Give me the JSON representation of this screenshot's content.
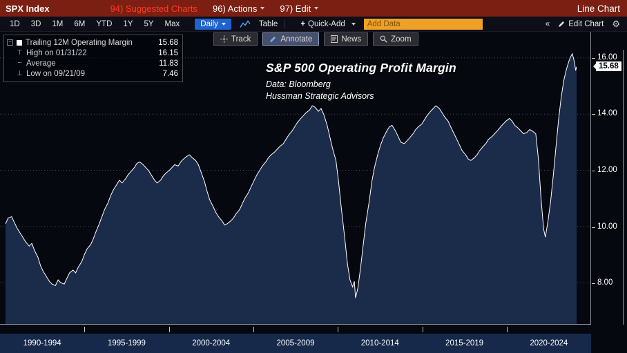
{
  "topbar": {
    "security": "SPX Index",
    "suggested": "94) Suggested Charts",
    "actions": "96) Actions",
    "edit": "97) Edit",
    "title": "Line Chart"
  },
  "toolbar": {
    "ranges": [
      "1D",
      "3D",
      "1M",
      "6M",
      "YTD",
      "1Y",
      "5Y",
      "Max"
    ],
    "period": "Daily",
    "table": "Table",
    "plus": "+",
    "quick_add": "Quick-Add",
    "add_data_placeholder": "Add Data",
    "collapse": "«",
    "edit_chart": "Edit Chart",
    "gear": "⚙"
  },
  "chart_tools": {
    "track": "Track",
    "annotate": "Annotate",
    "news": "News",
    "zoom": "Zoom"
  },
  "legend": {
    "collapse_glyph": "−",
    "rows": [
      {
        "label": "Trailing 12M Operating Margin",
        "value": "15.68",
        "glyph": ""
      },
      {
        "label": "High on 01/31/22",
        "value": "16.15",
        "glyph": "⊤"
      },
      {
        "label": "Average",
        "value": "11.83",
        "glyph": "┄"
      },
      {
        "label": "Low on 09/21/09",
        "value": "7.46",
        "glyph": "⊥"
      }
    ]
  },
  "annotation": {
    "title": "S&P 500 Operating Profit Margin",
    "line1": "Data: Bloomberg",
    "line2": "Hussman Strategic Advisors"
  },
  "axis": {
    "last_value": "15.68",
    "yticks": [
      "16.00",
      "14.00",
      "12.00",
      "10.00",
      "8.00"
    ],
    "xlabels": [
      "1990-1994",
      "1995-1999",
      "2000-2004",
      "2005-2009",
      "2010-2014",
      "2015-2019",
      "2020-2024"
    ]
  },
  "colors": {
    "topbar_red": "#7c1f13",
    "accent_blue": "#1e63cf",
    "amber": "#efa027",
    "area_fill": "#1b2c4b",
    "line": "#ffffff",
    "grid": "#414b59",
    "bottom_bar": "#16294a"
  },
  "chart_data": {
    "type": "area",
    "title": "S&P 500 Operating Profit Margin",
    "subtitle": [
      "Data: Bloomberg",
      "Hussman Strategic Advisors"
    ],
    "x_unit": "year",
    "yticks": [
      8,
      10,
      12,
      14,
      16
    ],
    "ylim_display": [
      6.53,
      16.93
    ],
    "x_bins": [
      "1990-1994",
      "1995-1999",
      "2000-2004",
      "2005-2009",
      "2010-2014",
      "2015-2019",
      "2020-2024"
    ],
    "grid": "dotted-horizontal",
    "legend_position": "top-left",
    "stats": {
      "last": 15.68,
      "high": 16.15,
      "high_date": "01/31/22",
      "average": 11.83,
      "low": 7.46,
      "low_date": "09/21/09"
    },
    "series": [
      {
        "name": "Trailing 12M Operating Margin",
        "points": [
          [
            1989.75,
            10.1
          ],
          [
            1989.9,
            10.3
          ],
          [
            1990.1,
            10.35
          ],
          [
            1990.25,
            10.15
          ],
          [
            1990.4,
            9.95
          ],
          [
            1990.6,
            9.75
          ],
          [
            1990.75,
            9.6
          ],
          [
            1990.9,
            9.45
          ],
          [
            1991.1,
            9.3
          ],
          [
            1991.25,
            9.4
          ],
          [
            1991.4,
            9.15
          ],
          [
            1991.6,
            8.9
          ],
          [
            1991.75,
            8.6
          ],
          [
            1991.9,
            8.4
          ],
          [
            1992.1,
            8.2
          ],
          [
            1992.25,
            8.05
          ],
          [
            1992.4,
            7.95
          ],
          [
            1992.6,
            7.9
          ],
          [
            1992.75,
            8.1
          ],
          [
            1992.9,
            8.0
          ],
          [
            1993.1,
            7.95
          ],
          [
            1993.25,
            8.15
          ],
          [
            1993.4,
            8.35
          ],
          [
            1993.6,
            8.45
          ],
          [
            1993.75,
            8.35
          ],
          [
            1993.9,
            8.55
          ],
          [
            1994.1,
            8.75
          ],
          [
            1994.25,
            9.0
          ],
          [
            1994.4,
            9.2
          ],
          [
            1994.6,
            9.35
          ],
          [
            1994.75,
            9.55
          ],
          [
            1994.9,
            9.8
          ],
          [
            1995.1,
            10.1
          ],
          [
            1995.25,
            10.35
          ],
          [
            1995.4,
            10.6
          ],
          [
            1995.6,
            10.85
          ],
          [
            1995.75,
            11.1
          ],
          [
            1995.9,
            11.3
          ],
          [
            1996.1,
            11.5
          ],
          [
            1996.25,
            11.65
          ],
          [
            1996.4,
            11.55
          ],
          [
            1996.6,
            11.7
          ],
          [
            1996.75,
            11.85
          ],
          [
            1996.9,
            11.95
          ],
          [
            1997.1,
            12.1
          ],
          [
            1997.25,
            12.25
          ],
          [
            1997.4,
            12.3
          ],
          [
            1997.6,
            12.2
          ],
          [
            1997.75,
            12.1
          ],
          [
            1997.9,
            12.0
          ],
          [
            1998.1,
            11.8
          ],
          [
            1998.25,
            11.65
          ],
          [
            1998.4,
            11.55
          ],
          [
            1998.6,
            11.65
          ],
          [
            1998.75,
            11.8
          ],
          [
            1998.9,
            11.9
          ],
          [
            1999.1,
            12.0
          ],
          [
            1999.25,
            12.1
          ],
          [
            1999.4,
            12.2
          ],
          [
            1999.6,
            12.15
          ],
          [
            1999.75,
            12.3
          ],
          [
            1999.9,
            12.4
          ],
          [
            2000.1,
            12.5
          ],
          [
            2000.25,
            12.55
          ],
          [
            2000.4,
            12.45
          ],
          [
            2000.6,
            12.35
          ],
          [
            2000.75,
            12.2
          ],
          [
            2000.9,
            11.95
          ],
          [
            2001.1,
            11.6
          ],
          [
            2001.25,
            11.25
          ],
          [
            2001.4,
            10.95
          ],
          [
            2001.6,
            10.7
          ],
          [
            2001.75,
            10.5
          ],
          [
            2001.9,
            10.35
          ],
          [
            2002.1,
            10.2
          ],
          [
            2002.25,
            10.05
          ],
          [
            2002.4,
            10.1
          ],
          [
            2002.6,
            10.2
          ],
          [
            2002.75,
            10.3
          ],
          [
            2002.9,
            10.45
          ],
          [
            2003.1,
            10.6
          ],
          [
            2003.25,
            10.8
          ],
          [
            2003.4,
            11.0
          ],
          [
            2003.6,
            11.2
          ],
          [
            2003.75,
            11.4
          ],
          [
            2003.9,
            11.6
          ],
          [
            2004.1,
            11.85
          ],
          [
            2004.25,
            12.0
          ],
          [
            2004.4,
            12.15
          ],
          [
            2004.6,
            12.3
          ],
          [
            2004.75,
            12.45
          ],
          [
            2004.9,
            12.55
          ],
          [
            2005.1,
            12.65
          ],
          [
            2005.25,
            12.75
          ],
          [
            2005.4,
            12.85
          ],
          [
            2005.6,
            12.95
          ],
          [
            2005.75,
            13.1
          ],
          [
            2005.9,
            13.25
          ],
          [
            2006.1,
            13.4
          ],
          [
            2006.25,
            13.55
          ],
          [
            2006.4,
            13.7
          ],
          [
            2006.6,
            13.85
          ],
          [
            2006.75,
            13.95
          ],
          [
            2006.9,
            14.05
          ],
          [
            2007.1,
            14.15
          ],
          [
            2007.25,
            14.3
          ],
          [
            2007.4,
            14.25
          ],
          [
            2007.6,
            14.1
          ],
          [
            2007.75,
            14.2
          ],
          [
            2007.9,
            14.0
          ],
          [
            2008.1,
            13.6
          ],
          [
            2008.25,
            13.2
          ],
          [
            2008.4,
            12.8
          ],
          [
            2008.6,
            12.35
          ],
          [
            2008.75,
            11.6
          ],
          [
            2008.9,
            10.7
          ],
          [
            2009.1,
            9.6
          ],
          [
            2009.25,
            8.7
          ],
          [
            2009.4,
            8.1
          ],
          [
            2009.55,
            7.85
          ],
          [
            2009.65,
            8.05
          ],
          [
            2009.72,
            7.46
          ],
          [
            2009.85,
            7.8
          ],
          [
            2010.0,
            8.5
          ],
          [
            2010.15,
            9.3
          ],
          [
            2010.3,
            10.1
          ],
          [
            2010.5,
            10.9
          ],
          [
            2010.65,
            11.6
          ],
          [
            2010.8,
            12.1
          ],
          [
            2011.0,
            12.6
          ],
          [
            2011.15,
            12.9
          ],
          [
            2011.3,
            13.15
          ],
          [
            2011.5,
            13.4
          ],
          [
            2011.65,
            13.55
          ],
          [
            2011.8,
            13.6
          ],
          [
            2012.0,
            13.4
          ],
          [
            2012.15,
            13.2
          ],
          [
            2012.3,
            13.0
          ],
          [
            2012.5,
            12.95
          ],
          [
            2012.65,
            13.05
          ],
          [
            2012.8,
            13.15
          ],
          [
            2013.0,
            13.3
          ],
          [
            2013.15,
            13.45
          ],
          [
            2013.3,
            13.55
          ],
          [
            2013.5,
            13.65
          ],
          [
            2013.65,
            13.8
          ],
          [
            2013.8,
            13.95
          ],
          [
            2014.0,
            14.1
          ],
          [
            2014.15,
            14.2
          ],
          [
            2014.3,
            14.3
          ],
          [
            2014.5,
            14.2
          ],
          [
            2014.65,
            14.05
          ],
          [
            2014.8,
            13.9
          ],
          [
            2015.0,
            13.75
          ],
          [
            2015.15,
            13.55
          ],
          [
            2015.3,
            13.35
          ],
          [
            2015.5,
            13.1
          ],
          [
            2015.65,
            12.9
          ],
          [
            2015.8,
            12.7
          ],
          [
            2016.0,
            12.55
          ],
          [
            2016.15,
            12.4
          ],
          [
            2016.3,
            12.35
          ],
          [
            2016.5,
            12.45
          ],
          [
            2016.65,
            12.55
          ],
          [
            2016.8,
            12.7
          ],
          [
            2017.0,
            12.85
          ],
          [
            2017.15,
            12.95
          ],
          [
            2017.3,
            13.1
          ],
          [
            2017.5,
            13.2
          ],
          [
            2017.65,
            13.3
          ],
          [
            2017.8,
            13.4
          ],
          [
            2018.0,
            13.55
          ],
          [
            2018.15,
            13.65
          ],
          [
            2018.3,
            13.75
          ],
          [
            2018.5,
            13.85
          ],
          [
            2018.65,
            13.75
          ],
          [
            2018.8,
            13.6
          ],
          [
            2019.0,
            13.5
          ],
          [
            2019.15,
            13.4
          ],
          [
            2019.3,
            13.3
          ],
          [
            2019.5,
            13.35
          ],
          [
            2019.65,
            13.45
          ],
          [
            2019.8,
            13.4
          ],
          [
            2020.0,
            13.3
          ],
          [
            2020.15,
            12.4
          ],
          [
            2020.3,
            11.0
          ],
          [
            2020.45,
            9.9
          ],
          [
            2020.55,
            9.62
          ],
          [
            2020.7,
            10.2
          ],
          [
            2020.85,
            10.9
          ],
          [
            2021.0,
            11.8
          ],
          [
            2021.15,
            12.8
          ],
          [
            2021.3,
            13.8
          ],
          [
            2021.45,
            14.6
          ],
          [
            2021.6,
            15.2
          ],
          [
            2021.75,
            15.6
          ],
          [
            2021.9,
            15.9
          ],
          [
            2022.0,
            16.05
          ],
          [
            2022.08,
            16.15
          ],
          [
            2022.15,
            16.0
          ],
          [
            2022.22,
            15.8
          ],
          [
            2022.28,
            15.55
          ],
          [
            2022.33,
            15.68
          ]
        ]
      }
    ]
  }
}
